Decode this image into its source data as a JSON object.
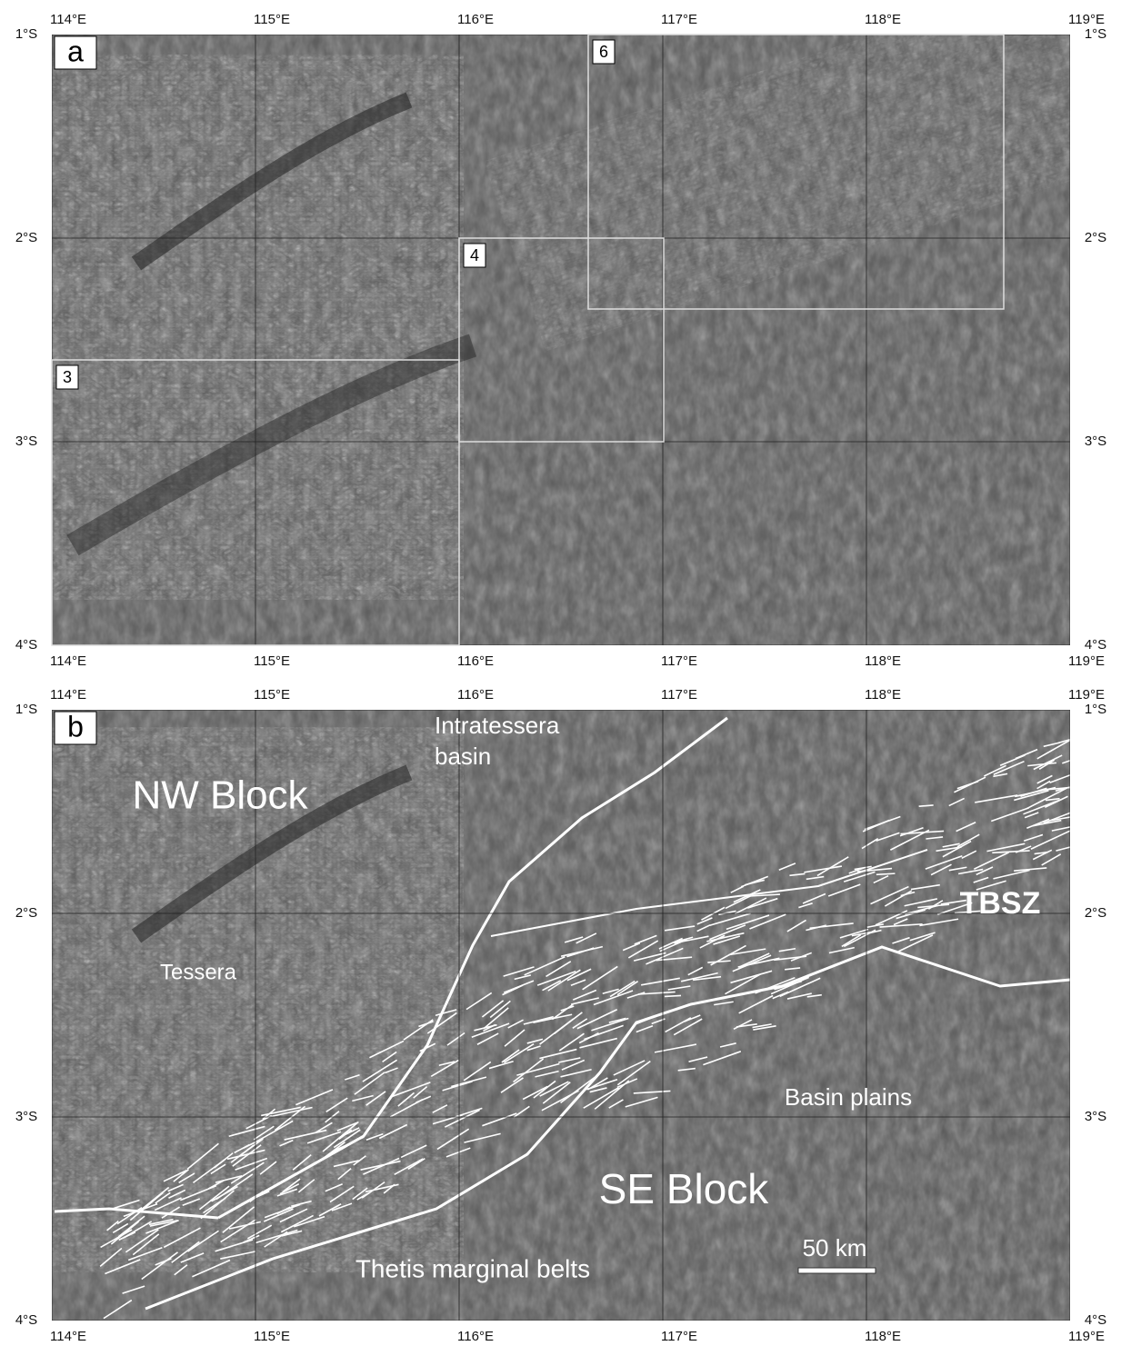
{
  "panels": [
    {
      "label": "a",
      "lon_labels": [
        "114°E",
        "115°E",
        "116°E",
        "117°E",
        "118°E",
        "119°E"
      ],
      "lat_labels": [
        "1°S",
        "2°S",
        "3°S",
        "4°S"
      ],
      "boxes": [
        "3",
        "4",
        "6"
      ]
    },
    {
      "label": "b",
      "lon_labels": [
        "114°E",
        "115°E",
        "116°E",
        "117°E",
        "118°E",
        "119°E"
      ],
      "lat_labels": [
        "1°S",
        "2°S",
        "3°S",
        "4°S"
      ],
      "annotations": {
        "intratessera_basin": [
          "Intratessera",
          "basin"
        ],
        "nw_block": "NW Block",
        "tessera": "Tessera",
        "tbsz": "TBSZ",
        "basin_plains": "Basin plains",
        "se_block": "SE Block",
        "thetis_marginal_belts": "Thetis marginal belts"
      },
      "scale_bar": "50 km"
    }
  ]
}
